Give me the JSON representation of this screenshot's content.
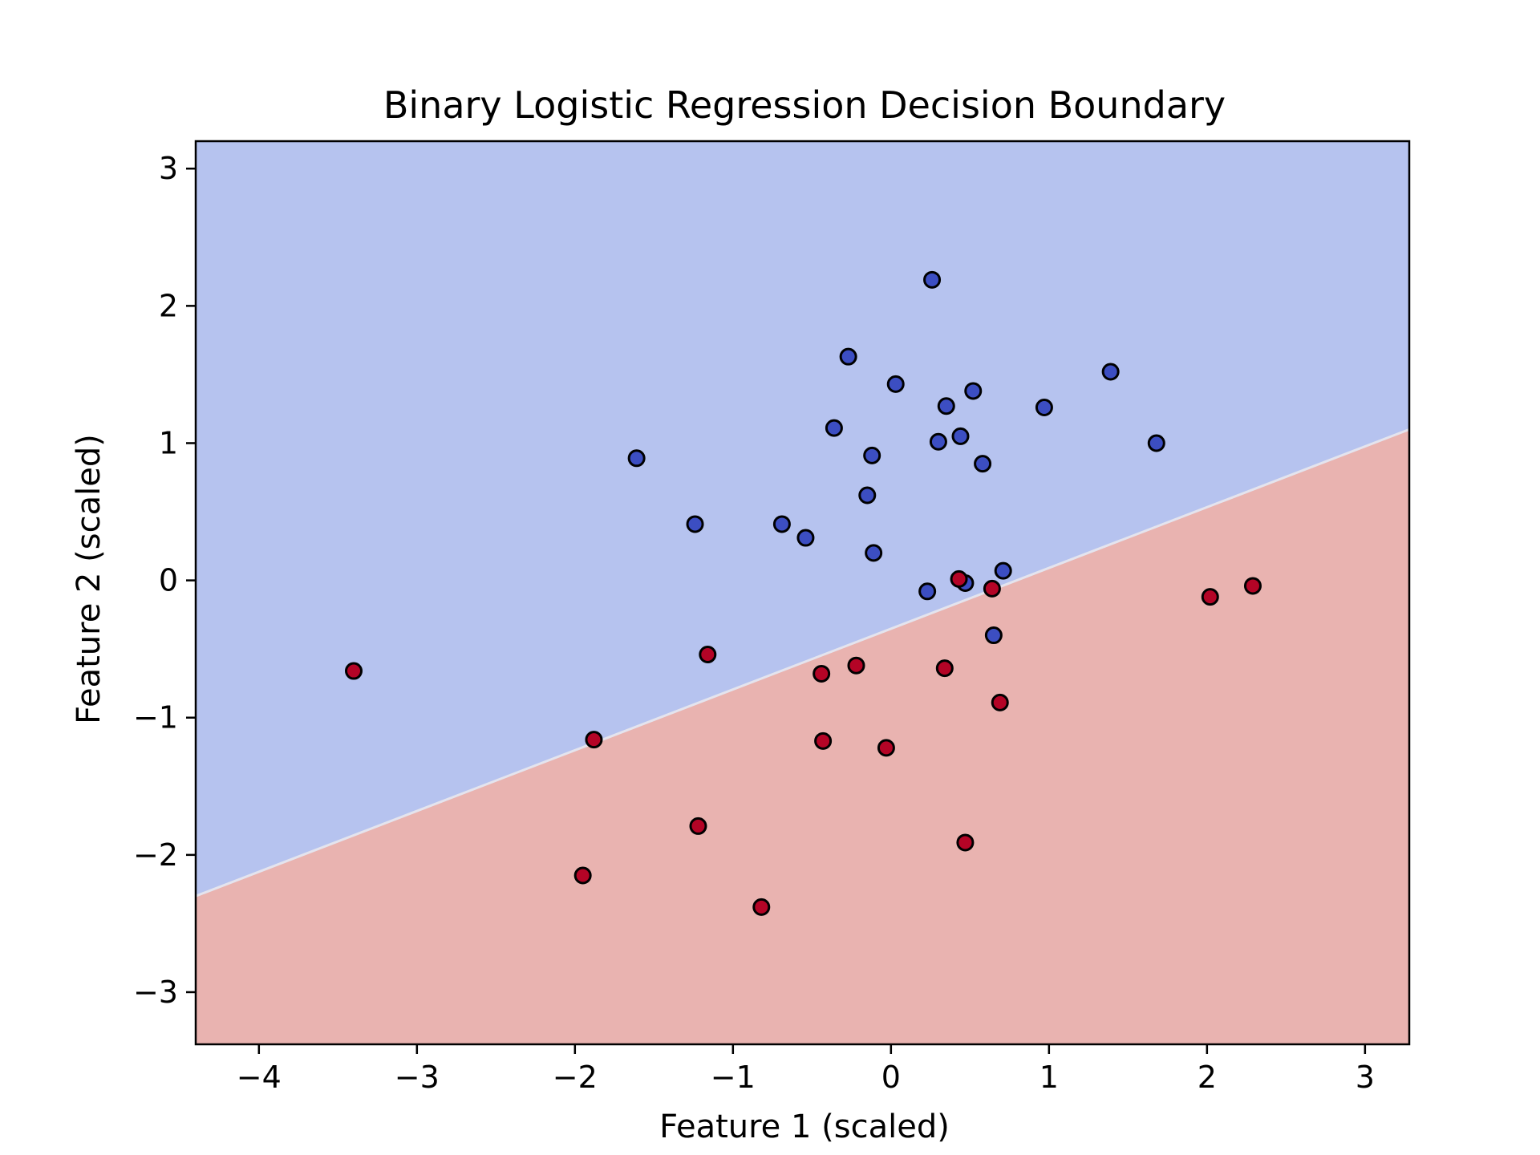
{
  "colors": {
    "region_class0": "#b6c3ef",
    "region_class1": "#e9b3b0",
    "point_class0": "#3c4ec2",
    "point_class1": "#b40426",
    "point_edge": "#000000",
    "axis": "#000000"
  },
  "chart_data": {
    "type": "scatter",
    "title": "Binary Logistic Regression Decision Boundary",
    "xlabel": "Feature 1 (scaled)",
    "ylabel": "Feature 2 (scaled)",
    "xlim": [
      -4.4,
      3.28
    ],
    "ylim": [
      -3.38,
      3.2
    ],
    "xticks": [
      -4,
      -3,
      -2,
      -1,
      0,
      1,
      2,
      3
    ],
    "xtick_labels": [
      "−4",
      "−3",
      "−2",
      "−1",
      "0",
      "1",
      "2",
      "3"
    ],
    "yticks": [
      -3,
      -2,
      -1,
      0,
      1,
      2,
      3
    ],
    "ytick_labels": [
      "−3",
      "−2",
      "−1",
      "0",
      "1",
      "2",
      "3"
    ],
    "grid": false,
    "legend": "none",
    "decision_boundary": {
      "x": [
        -4.4,
        3.28
      ],
      "y": [
        -2.3,
        1.1
      ],
      "upper_region": "class 0",
      "lower_region": "class 1"
    },
    "series": [
      {
        "class": 0,
        "points": [
          [
            0.26,
            2.19
          ],
          [
            -0.27,
            1.63
          ],
          [
            0.03,
            1.43
          ],
          [
            0.52,
            1.38
          ],
          [
            1.39,
            1.52
          ],
          [
            0.35,
            1.27
          ],
          [
            0.97,
            1.26
          ],
          [
            -0.36,
            1.11
          ],
          [
            0.44,
            1.05
          ],
          [
            0.3,
            1.01
          ],
          [
            1.68,
            1.0
          ],
          [
            -1.61,
            0.89
          ],
          [
            -0.12,
            0.91
          ],
          [
            0.58,
            0.85
          ],
          [
            -0.15,
            0.62
          ],
          [
            -1.24,
            0.41
          ],
          [
            -0.69,
            0.41
          ],
          [
            -0.54,
            0.31
          ],
          [
            -0.11,
            0.2
          ],
          [
            0.71,
            0.07
          ],
          [
            0.47,
            -0.02
          ],
          [
            0.23,
            -0.08
          ],
          [
            0.65,
            -0.4
          ]
        ]
      },
      {
        "class": 1,
        "points": [
          [
            -3.4,
            -0.66
          ],
          [
            -1.16,
            -0.54
          ],
          [
            -0.22,
            -0.62
          ],
          [
            0.34,
            -0.64
          ],
          [
            -0.44,
            -0.68
          ],
          [
            0.43,
            0.01
          ],
          [
            0.64,
            -0.06
          ],
          [
            2.02,
            -0.12
          ],
          [
            2.29,
            -0.04
          ],
          [
            0.69,
            -0.89
          ],
          [
            -1.88,
            -1.16
          ],
          [
            -0.43,
            -1.17
          ],
          [
            -0.03,
            -1.22
          ],
          [
            -1.22,
            -1.79
          ],
          [
            0.47,
            -1.91
          ],
          [
            -1.95,
            -2.15
          ],
          [
            -0.82,
            -2.38
          ]
        ]
      }
    ]
  }
}
